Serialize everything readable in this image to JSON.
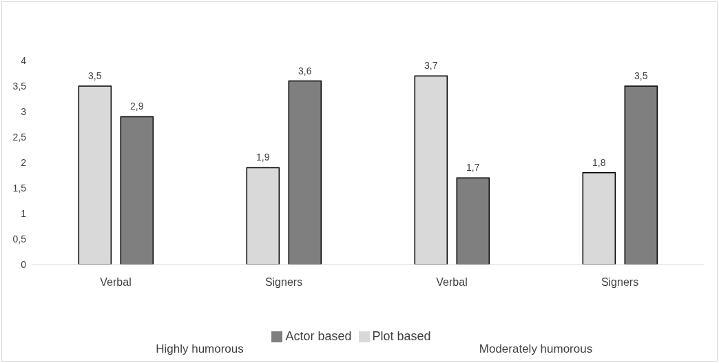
{
  "chart_data": {
    "type": "bar",
    "categories": [
      "Verbal",
      "Signers",
      "Verbal",
      "Signers"
    ],
    "series": [
      {
        "name": "Plot based",
        "color": "#d9d9d9",
        "values": [
          3.5,
          1.9,
          3.7,
          1.8
        ],
        "value_labels": [
          "3,5",
          "1,9",
          "3,7",
          "1,8"
        ]
      },
      {
        "name": "Actor based",
        "color": "#7f7f7f",
        "values": [
          2.9,
          3.6,
          1.7,
          3.5
        ],
        "value_labels": [
          "2,9",
          "3,6",
          "1,7",
          "3,5"
        ]
      }
    ],
    "annotations": [
      "Highly humorous",
      "Moderately humorous"
    ],
    "ylim": [
      0,
      4
    ],
    "yticks": [
      0,
      {
        "value": 0.5,
        "label": "0,5"
      },
      1,
      {
        "value": 1.5,
        "label": "1,5"
      },
      2,
      {
        "value": 2.5,
        "label": "2,5"
      },
      3,
      {
        "value": 3.5,
        "label": "3,5"
      },
      4
    ],
    "grid": false,
    "legend": "bottom"
  }
}
